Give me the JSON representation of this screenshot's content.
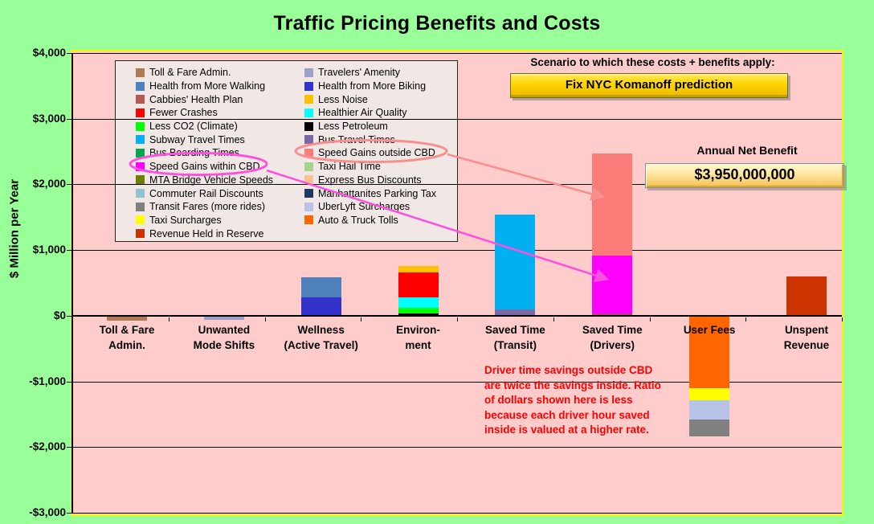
{
  "title": "Traffic Pricing Benefits and Costs",
  "scenario": {
    "label": "Scenario to which these costs + benefits apply:",
    "button_label": "Fix NYC Komanoff prediction"
  },
  "net_benefit": {
    "label": "Annual Net Benefit",
    "value": "$3,950,000,000"
  },
  "annotation": {
    "color": "#FF0000",
    "lines": [
      "Driver time savings outside CBD",
      "are twice the savings inside. Ratio",
      "of dollars shown here is less",
      "because each driver hour saved",
      "inside is valued at a higher rate."
    ]
  },
  "colors": {
    "page_bg": "#99FF99",
    "plot_bg": "#FFCCCC",
    "plot_border": "#FFF200",
    "legend_bg": "#F1E8E5",
    "button_gold": "#FFD400",
    "ellipse_within": "#FF4FDE",
    "ellipse_outside": "#F98E8E"
  },
  "chart_data": {
    "type": "bar",
    "stacked": true,
    "title": "Traffic Pricing Benefits and Costs",
    "xlabel": "",
    "ylabel": "$ Million per Year",
    "ylim": [
      -3000,
      4000
    ],
    "grid": true,
    "legend_position": "upper-left-inside",
    "yticks": [
      {
        "label": "$4,000",
        "value": 4000
      },
      {
        "label": "$3,000",
        "value": 3000
      },
      {
        "label": "$2,000",
        "value": 2000
      },
      {
        "label": "$1,000",
        "value": 1000
      },
      {
        "label": "$0",
        "value": 0
      },
      {
        "label": "-$1,000",
        "value": -1000
      },
      {
        "label": "-$2,000",
        "value": -2000
      },
      {
        "label": "-$3,000",
        "value": -3000
      }
    ],
    "categories": [
      "Toll & Fare Admin.",
      "Unwanted Mode Shifts",
      "Wellness (Active Travel)",
      "Environ-ment",
      "Saved Time (Transit)",
      "Saved Time (Drivers)",
      "User Fees",
      "Unspent Revenue"
    ],
    "legend_columns": [
      [
        {
          "name": "Toll & Fare Admin.",
          "color": "#AF7A55"
        },
        {
          "name": "Health from More Walking",
          "color": "#4F81BD"
        },
        {
          "name": "Cabbies' Health Plan",
          "color": "#B55A52"
        },
        {
          "name": "Fewer Crashes",
          "color": "#FF0000"
        },
        {
          "name": "Less CO2 (Climate)",
          "color": "#00FF00"
        },
        {
          "name": "Subway Travel Times",
          "color": "#00B0F0"
        },
        {
          "name": "Bus Boarding Times",
          "color": "#00A550"
        },
        {
          "name": "Speed Gains within CBD",
          "color": "#FF00FF"
        },
        {
          "name": "MTA Bridge Vehicle Speeds",
          "color": "#6F8000"
        },
        {
          "name": "Commuter Rail Discounts",
          "color": "#92C3D2"
        },
        {
          "name": "Transit Fares (more rides)",
          "color": "#808080"
        },
        {
          "name": "Taxi Surcharges",
          "color": "#FFFF00"
        },
        {
          "name": "Revenue Held in Reserve",
          "color": "#CC3300"
        }
      ],
      [
        {
          "name": "Travelers' Amenity",
          "color": "#9FA0C8"
        },
        {
          "name": "Health from More Biking",
          "color": "#3333CC"
        },
        {
          "name": "Less Noise",
          "color": "#FFC000"
        },
        {
          "name": "Healthier Air Quality",
          "color": "#00FFFF"
        },
        {
          "name": "Less Petroleum",
          "color": "#000000"
        },
        {
          "name": "Bus Travel Times",
          "color": "#7A68A2"
        },
        {
          "name": "Speed Gains outside CBD",
          "color": "#F97C79"
        },
        {
          "name": "Taxi Hail Time",
          "color": "#A9D18E"
        },
        {
          "name": "Express Bus Discounts",
          "color": "#FAC090"
        },
        {
          "name": "Manhattanites Parking Tax",
          "color": "#1F3864"
        },
        {
          "name": "UberLyft Surcharges",
          "color": "#B7C3E6"
        },
        {
          "name": "Auto & Truck Tolls",
          "color": "#FF6600"
        }
      ]
    ],
    "bars": [
      {
        "category_lines": [
          "Toll & Fare",
          "Admin."
        ],
        "segments": [
          {
            "name": "Toll & Fare Admin.",
            "value": -80,
            "color": "#AF7A55"
          }
        ]
      },
      {
        "category_lines": [
          "Unwanted",
          "Mode Shifts"
        ],
        "segments": [
          {
            "name": "Travelers' Amenity",
            "value": -60,
            "color": "#9FA0C8"
          }
        ]
      },
      {
        "category_lines": [
          "Wellness",
          "(Active Travel)"
        ],
        "segments": [
          {
            "name": "Health from More Biking",
            "value": 280,
            "color": "#3333CC"
          },
          {
            "name": "Health from More Walking",
            "value": 300,
            "color": "#4F81BD"
          }
        ]
      },
      {
        "category_lines": [
          "Environ-",
          "ment"
        ],
        "segments": [
          {
            "name": "Less Petroleum",
            "value": 35,
            "color": "#000000"
          },
          {
            "name": "Less CO2 (Climate)",
            "value": 80,
            "color": "#00FF00"
          },
          {
            "name": "Healthier Air Quality",
            "value": 165,
            "color": "#00FFFF"
          },
          {
            "name": "Fewer Crashes",
            "value": 385,
            "color": "#FF0000"
          },
          {
            "name": "Less Noise",
            "value": 95,
            "color": "#FFC000"
          }
        ]
      },
      {
        "category_lines": [
          "Saved Time",
          "(Transit)"
        ],
        "segments": [
          {
            "name": "Bus Travel Times",
            "value": 100,
            "color": "#7A68A2"
          },
          {
            "name": "Subway Travel Times",
            "value": 1440,
            "color": "#00B0F0"
          }
        ]
      },
      {
        "category_lines": [
          "Saved Time",
          "(Drivers)"
        ],
        "segments": [
          {
            "name": "MTA Bridge Vehicle Speeds",
            "value": 20,
            "color": "#6F8000"
          },
          {
            "name": "Speed Gains within CBD",
            "value": 900,
            "color": "#FF00FF"
          },
          {
            "name": "Speed Gains outside CBD",
            "value": 1550,
            "color": "#F97C79"
          }
        ]
      },
      {
        "category_lines": [
          "User Fees"
        ],
        "segments": [
          {
            "name": "Auto & Truck Tolls",
            "value": -1100,
            "color": "#FF6600"
          },
          {
            "name": "Taxi Surcharges",
            "value": -185,
            "color": "#FFFF00"
          },
          {
            "name": "UberLyft Surcharges",
            "value": -290,
            "color": "#B7C3E6"
          },
          {
            "name": "Transit Fares (more rides)",
            "value": -265,
            "color": "#808080"
          }
        ]
      },
      {
        "category_lines": [
          "Unspent",
          "Revenue"
        ],
        "segments": [
          {
            "name": "Revenue Held in Reserve",
            "value": 600,
            "color": "#CC3300"
          }
        ]
      }
    ]
  }
}
